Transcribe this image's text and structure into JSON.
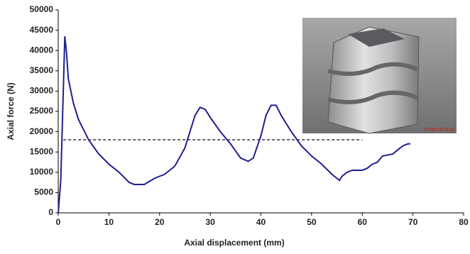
{
  "chart_data": {
    "type": "line",
    "xlabel": "Axial displacement (mm)",
    "ylabel": "Axial force (N)",
    "x": [
      0,
      0.5,
      1,
      1.3,
      1.6,
      2,
      3,
      4,
      5,
      6,
      8,
      10,
      12,
      14,
      15,
      17,
      19,
      21,
      23,
      25,
      26,
      27,
      28,
      29,
      30,
      32,
      34,
      36,
      37.5,
      38.5,
      40,
      41,
      42,
      43,
      44,
      46,
      48,
      50,
      52,
      54,
      55.5,
      56,
      57,
      58,
      60,
      61,
      62,
      63,
      64,
      66,
      67,
      68,
      69,
      69.5
    ],
    "series": [
      {
        "color": "#1f1f8f",
        "values": [
          0,
          8000,
          30000,
          43500,
          40000,
          33000,
          27000,
          23000,
          20500,
          18000,
          14500,
          12000,
          10000,
          7500,
          7000,
          7000,
          8500,
          9500,
          11500,
          16000,
          20000,
          24000,
          26000,
          25500,
          23500,
          20000,
          17000,
          13500,
          12700,
          13500,
          19000,
          24000,
          26500,
          26500,
          24000,
          20000,
          16500,
          14000,
          12000,
          9500,
          8000,
          9000,
          10000,
          10500,
          10500,
          11000,
          12000,
          12500,
          14000,
          14500,
          15500,
          16500,
          17000,
          17000
        ]
      }
    ],
    "reference_line": {
      "y": 18000,
      "x": [
        1,
        60
      ],
      "color": "#333333"
    },
    "photo_timestamp": "07.Oct.08 23:22",
    "xlim": [
      0,
      80
    ],
    "xticks": [
      0,
      10,
      20,
      30,
      40,
      50,
      60,
      70,
      80
    ],
    "ylim": [
      0,
      50000
    ],
    "yticks": [
      0,
      5000,
      10000,
      15000,
      20000,
      25000,
      30000,
      35000,
      40000,
      45000,
      50000
    ],
    "grid": false
  }
}
